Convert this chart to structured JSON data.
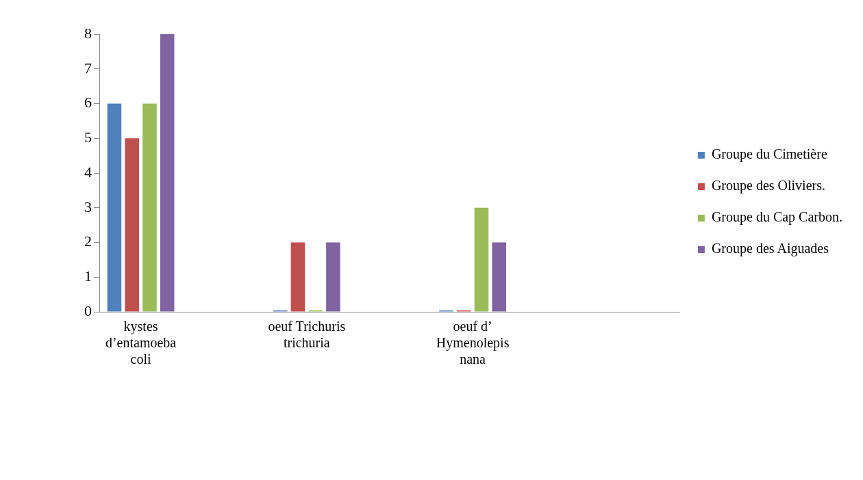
{
  "chart_data": {
    "type": "bar",
    "categories": [
      "kystes d’entamoeba coli",
      null,
      "oeuf Trichuris trichuria",
      null,
      "oeuf d’ Hymenolepis nana",
      null,
      null
    ],
    "series": [
      {
        "name": "Groupe du Cimetière",
        "color": "#4f81bd",
        "values": [
          6,
          null,
          0,
          null,
          0,
          null,
          null
        ]
      },
      {
        "name": "Groupe des Oliviers.",
        "color": "#c0504d",
        "values": [
          5,
          null,
          2,
          null,
          0,
          null,
          null
        ]
      },
      {
        "name": "Groupe du Cap Carbon.",
        "color": "#9bbb59",
        "values": [
          6,
          null,
          0,
          null,
          3,
          null,
          null
        ]
      },
      {
        "name": "Groupe des Aiguades",
        "color": "#8064a2",
        "values": [
          8,
          null,
          2,
          null,
          2,
          null,
          null
        ]
      }
    ],
    "ylim": [
      0,
      8
    ],
    "yticks": [
      0,
      1,
      2,
      3,
      4,
      5,
      6,
      7,
      8
    ],
    "grid": false,
    "legend": "right"
  }
}
